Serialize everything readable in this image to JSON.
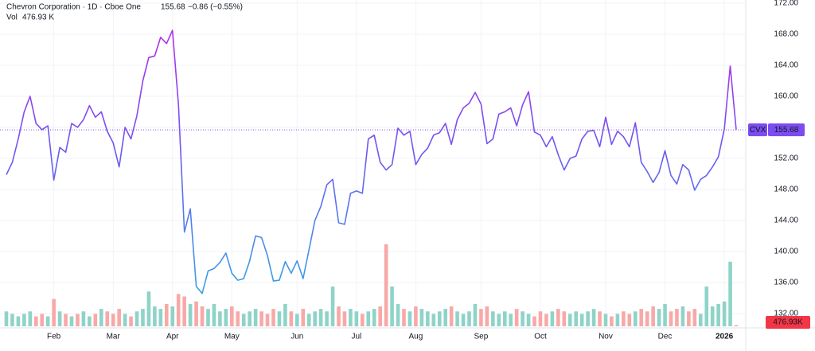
{
  "chart_data": {
    "type": "line",
    "title": "Chevron Corporation · 1D · Cboe One",
    "change": "−0.86 (−0.55%)",
    "volume_title": "Vol",
    "volume_label": "476.93 K",
    "volume_badge": "476.93K",
    "symbol": "CVX",
    "categories": [
      null,
      null,
      null,
      null,
      null,
      null,
      null,
      null,
      "Feb",
      null,
      null,
      null,
      null,
      null,
      null,
      null,
      null,
      null,
      "Mar",
      null,
      null,
      null,
      null,
      null,
      null,
      null,
      null,
      null,
      "Apr",
      null,
      null,
      null,
      null,
      null,
      null,
      null,
      null,
      null,
      "May",
      null,
      null,
      null,
      null,
      null,
      null,
      null,
      null,
      null,
      null,
      "Jun",
      null,
      null,
      null,
      null,
      null,
      null,
      null,
      null,
      null,
      "Jul",
      null,
      null,
      null,
      null,
      null,
      null,
      null,
      null,
      null,
      "Aug",
      null,
      null,
      null,
      null,
      null,
      null,
      null,
      null,
      null,
      null,
      "Sep",
      null,
      null,
      null,
      null,
      null,
      null,
      null,
      null,
      null,
      "Oct",
      null,
      null,
      null,
      null,
      null,
      null,
      null,
      null,
      null,
      null,
      "Nov",
      null,
      null,
      null,
      null,
      null,
      null,
      null,
      null,
      null,
      "Dec",
      null,
      null,
      null,
      null,
      null,
      null,
      null,
      null,
      null,
      "2026",
      null,
      null
    ],
    "series": [
      {
        "name": "CVX",
        "gradient_colors": [
          "#b52ced",
          "#7056f2",
          "#3aa0e6"
        ],
        "values": [
          149.9,
          151.5,
          154.5,
          158,
          160,
          156.5,
          155.7,
          156.2,
          149.2,
          153.4,
          152.8,
          156.5,
          156,
          157,
          158.8,
          157.3,
          158,
          155.5,
          154,
          150.9,
          156,
          154.5,
          157.5,
          162,
          165,
          165.2,
          167.6,
          166.8,
          168.5,
          159,
          142.5,
          145.5,
          135.5,
          134.6,
          137.5,
          137.8,
          138.6,
          139.8,
          137.2,
          136.3,
          136.5,
          138.8,
          142,
          141.8,
          139.5,
          136.2,
          136.3,
          138.7,
          137.2,
          138.8,
          136.5,
          140.2,
          144,
          145.8,
          148.6,
          149.3,
          143.7,
          143.5,
          147.5,
          147.8,
          147.5,
          154.5,
          155,
          151.5,
          150.5,
          151.2,
          155.9,
          155,
          155.5,
          151.2,
          152.5,
          153.3,
          155,
          155.3,
          156.5,
          153.8,
          157,
          158.5,
          159.1,
          160.5,
          159,
          153.9,
          154.5,
          157.7,
          158,
          158.5,
          156.2,
          158.9,
          160.6,
          155.4,
          155,
          153.5,
          154.8,
          152.5,
          150.5,
          152,
          152.3,
          154.5,
          155.5,
          155.6,
          153.5,
          157.3,
          153.8,
          155.5,
          154.8,
          153.5,
          156.6,
          151.5,
          150.3,
          148.9,
          150.2,
          153,
          149.8,
          148.7,
          151.2,
          150.5,
          147.9,
          149.3,
          149.8,
          150.9,
          152.2,
          155.8,
          163.9,
          155.68
        ]
      },
      {
        "name": "Vol",
        "up_color": "#8fd3c8",
        "down_color": "#f7a9a7",
        "values": [
          6,
          5,
          4,
          5,
          6,
          4,
          5,
          4,
          11,
          6,
          5,
          4,
          5,
          6,
          4,
          5,
          7,
          6,
          5,
          7,
          5,
          4,
          6,
          7,
          14,
          8,
          7,
          9,
          8,
          13,
          12,
          9,
          10,
          8,
          7,
          9,
          6,
          7,
          8,
          6,
          5,
          6,
          7,
          6,
          5,
          7,
          6,
          9,
          6,
          5,
          7,
          5,
          6,
          7,
          6,
          16,
          8,
          6,
          7,
          6,
          5,
          6,
          7,
          8,
          33,
          16,
          9,
          7,
          6,
          8,
          7,
          6,
          5,
          6,
          7,
          8,
          6,
          5,
          6,
          9,
          7,
          8,
          6,
          5,
          6,
          5,
          7,
          6,
          5,
          4,
          6,
          5,
          6,
          7,
          6,
          5,
          6,
          5,
          6,
          7,
          6,
          5,
          4,
          5,
          6,
          5,
          6,
          7,
          6,
          8,
          7,
          9,
          6,
          7,
          8,
          6,
          7,
          5,
          16,
          8,
          9,
          10,
          26,
          0.47693
        ]
      }
    ],
    "ylim": [
      132,
      172
    ],
    "volume_ylim": [
      0,
      40
    ],
    "yticks": [
      {
        "value": 132,
        "label": "132.00"
      },
      {
        "value": 136,
        "label": "136.00"
      },
      {
        "value": 140,
        "label": "140.00"
      },
      {
        "value": 144,
        "label": "144.00"
      },
      {
        "value": 148,
        "label": "148.00"
      },
      {
        "value": 152,
        "label": "152.00"
      },
      {
        "value": 156,
        "label": "156.00"
      },
      {
        "value": 160,
        "label": "160.00"
      },
      {
        "value": 164,
        "label": "164.00"
      },
      {
        "value": 168,
        "label": "168.00"
      },
      {
        "value": 172,
        "label": "172.00"
      }
    ],
    "grid": true,
    "price_color": "#7b4cf0",
    "volume_color": "#f23645"
  }
}
